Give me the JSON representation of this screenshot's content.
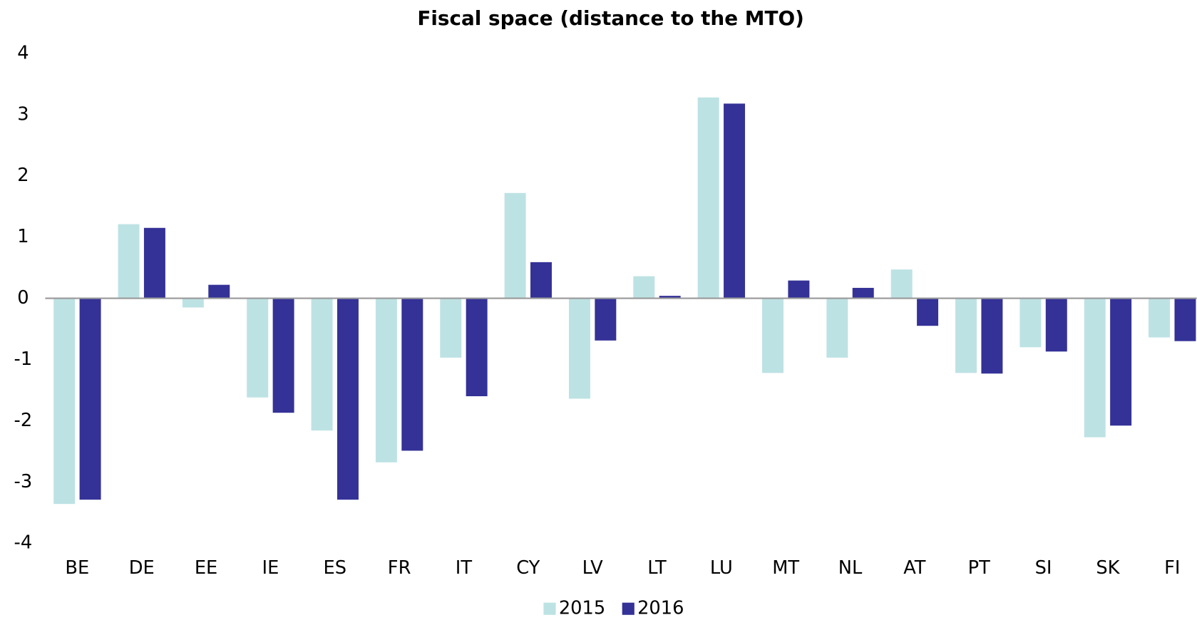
{
  "chart_data": {
    "type": "bar",
    "title": "Fiscal space (distance to the MTO)",
    "categories": [
      "BE",
      "DE",
      "EE",
      "IE",
      "ES",
      "FR",
      "IT",
      "CY",
      "LV",
      "LT",
      "LU",
      "MT",
      "NL",
      "AT",
      "PT",
      "SI",
      "SK",
      "FI"
    ],
    "series": [
      {
        "name": "2015",
        "color": "#bde2e4",
        "values": [
          -3.36,
          1.21,
          -0.15,
          -1.62,
          -2.16,
          -2.68,
          -0.97,
          1.72,
          -1.64,
          0.36,
          3.28,
          -1.22,
          -0.97,
          0.47,
          -1.22,
          -0.8,
          -2.27,
          -0.64
        ]
      },
      {
        "name": "2016",
        "color": "#343297",
        "values": [
          -3.29,
          1.15,
          0.22,
          -1.87,
          -3.29,
          -2.49,
          -1.6,
          0.59,
          -0.69,
          0.04,
          3.18,
          0.29,
          0.17,
          -0.45,
          -1.23,
          -0.87,
          -2.08,
          -0.7
        ]
      }
    ],
    "ylim": [
      -4,
      4
    ],
    "yticks": [
      -4,
      -3,
      -2,
      -1,
      0,
      1,
      2,
      3,
      4
    ],
    "grid": false,
    "legend": "bottom"
  }
}
